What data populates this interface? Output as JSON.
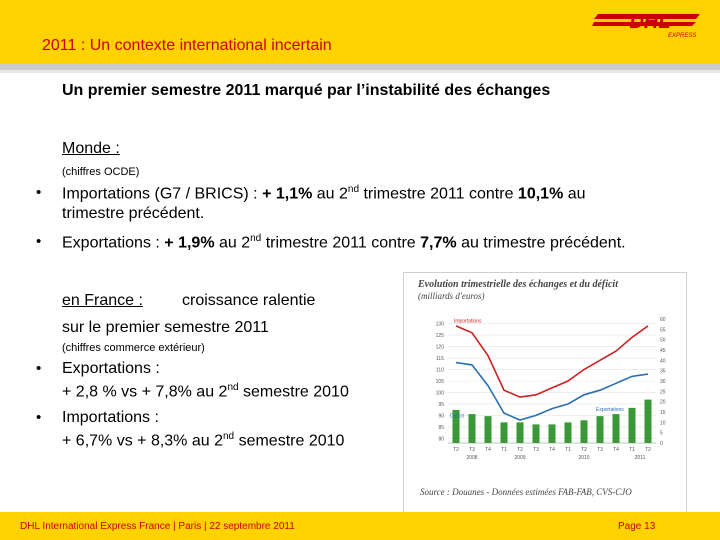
{
  "header": {
    "title": "2011 : Un contexte international incertain",
    "logo_text": "DHL",
    "logo_sub": "EXPRESS"
  },
  "subtitle": "Un premier semestre 2011 marqué par l’instabilité des échanges",
  "monde": {
    "heading": "Monde :",
    "source": "(chiffres OCDE)",
    "item1_a": "Importations (G7 / BRICS) : ",
    "item1_b": "+ 1,1% ",
    "item1_c": "au 2",
    "item1_sup": "nd",
    "item1_d": " trimestre 2011 contre ",
    "item1_e": "10,1% ",
    "item1_f": "au",
    "item1_line2": "trimestre précédent.",
    "item2_a": "Exportations : ",
    "item2_b": "+ 1,9% ",
    "item2_c": "au 2",
    "item2_sup": "nd",
    "item2_d": " trimestre 2011 contre ",
    "item2_e": "7,7% ",
    "item2_f": "au trimestre précédent."
  },
  "france": {
    "heading": "en France :",
    "heading_b": "croissance ralentie",
    "line2": "sur le premier semestre 2011",
    "source": "(chiffres commerce extérieur)",
    "exp_label": "Exportations :",
    "exp_values": "+ 2,8 % vs + 7,8% au 2",
    "exp_sup": "nd",
    "exp_tail": " semestre 2010",
    "imp_label": "Importations :",
    "imp_values": "+ 6,7% vs + 8,3% au 2",
    "imp_sup": "nd",
    "imp_tail": " semestre 2010"
  },
  "chart_data": {
    "type": "line",
    "title": "Evolution trimestrielle des échanges et du déficit",
    "subtitle": "(milliards d'euros)",
    "source": "Source : Douanes - Données estimées FAB-FAB, CVS-CJO",
    "categories": [
      "T2",
      "T3",
      "T4",
      "T1",
      "T2",
      "T3",
      "T4",
      "T1",
      "T2",
      "T3",
      "T4",
      "T1",
      "T2"
    ],
    "years": [
      "2008",
      "2009",
      "2010",
      "2011"
    ],
    "left_axis": [
      130,
      125,
      120,
      115,
      110,
      105,
      100,
      95,
      90,
      85,
      80
    ],
    "right_axis": [
      60,
      55,
      50,
      45,
      40,
      35,
      30,
      25,
      20,
      15,
      10,
      5,
      0
    ],
    "ylim_left": [
      78,
      132
    ],
    "ylim_right": [
      0,
      60
    ],
    "series": [
      {
        "name": "Importations",
        "color": "#cc2222",
        "values": [
          129,
          126,
          116,
          101,
          98,
          99,
          102,
          105,
          110,
          114,
          118,
          124,
          129
        ]
      },
      {
        "name": "Exportations",
        "color": "#2a6fb0",
        "values": [
          113,
          112,
          103,
          91,
          88,
          90,
          93,
          95,
          99,
          101,
          104,
          107,
          108
        ]
      },
      {
        "name": "Déficit",
        "color": "#3a9a3a",
        "type": "bar",
        "values": [
          16,
          14,
          13,
          10,
          10,
          9,
          9,
          10,
          11,
          13,
          14,
          17,
          21
        ]
      }
    ]
  },
  "footer": {
    "left": "DHL International Express France | Paris | 22 septembre 2011",
    "right": "Page 13"
  },
  "colors": {
    "brand_yellow": "#ffd200",
    "brand_red": "#cc0000"
  }
}
